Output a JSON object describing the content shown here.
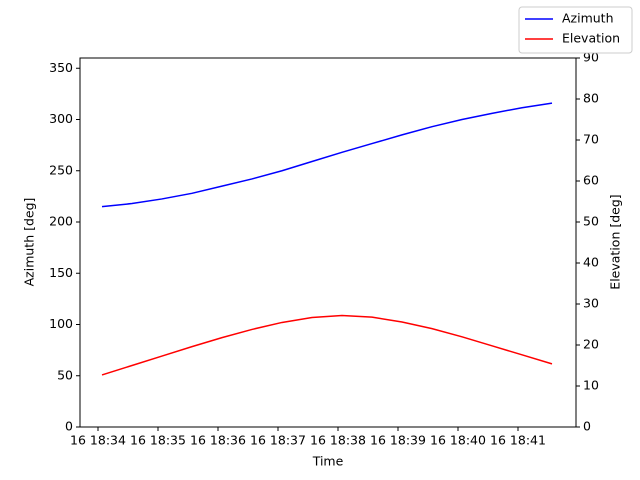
{
  "chart_data": {
    "type": "line",
    "x_label": "Time",
    "y_label": "Azimuth [deg]",
    "y2_label": "Elevation [deg]",
    "x": [
      "18:34:04",
      "18:34:34",
      "18:35:04",
      "18:35:34",
      "18:36:04",
      "18:36:34",
      "18:37:04",
      "18:37:34",
      "18:38:04",
      "18:38:34",
      "18:39:04",
      "18:39:34",
      "18:40:04",
      "18:40:34",
      "18:41:04",
      "18:41:34"
    ],
    "series": [
      {
        "name": "Azimuth",
        "color": "#0000ff",
        "values": [
          215,
          218,
          222.5,
          228,
          235,
          242,
          250,
          259,
          268,
          276.5,
          285,
          293,
          300,
          306,
          311.5,
          316
        ]
      },
      {
        "name": "Elevation",
        "color": "#ff0000",
        "axis": "y2",
        "values": [
          12.7,
          15,
          17.3,
          19.6,
          21.8,
          23.8,
          25.5,
          26.7,
          27.2,
          26.8,
          25.6,
          24,
          22,
          19.8,
          17.6,
          15.4
        ]
      }
    ],
    "xlim": [
      "18:33:42",
      "18:41:58"
    ],
    "xticks": [
      {
        "value": "18:34:00",
        "label": "16 18:34"
      },
      {
        "value": "18:35:00",
        "label": "16 18:35"
      },
      {
        "value": "18:36:00",
        "label": "16 18:36"
      },
      {
        "value": "18:37:00",
        "label": "16 18:37"
      },
      {
        "value": "18:38:00",
        "label": "16 18:38"
      },
      {
        "value": "18:39:00",
        "label": "16 18:39"
      },
      {
        "value": "18:40:00",
        "label": "16 18:40"
      },
      {
        "value": "18:41:00",
        "label": "16 18:41"
      }
    ],
    "ylim": [
      0,
      360
    ],
    "yticks": [
      0,
      50,
      100,
      150,
      200,
      250,
      300,
      350
    ],
    "y2lim": [
      0,
      90
    ],
    "y2ticks": [
      0,
      10,
      20,
      30,
      40,
      50,
      60,
      70,
      80,
      90
    ],
    "legend": "upper right"
  }
}
